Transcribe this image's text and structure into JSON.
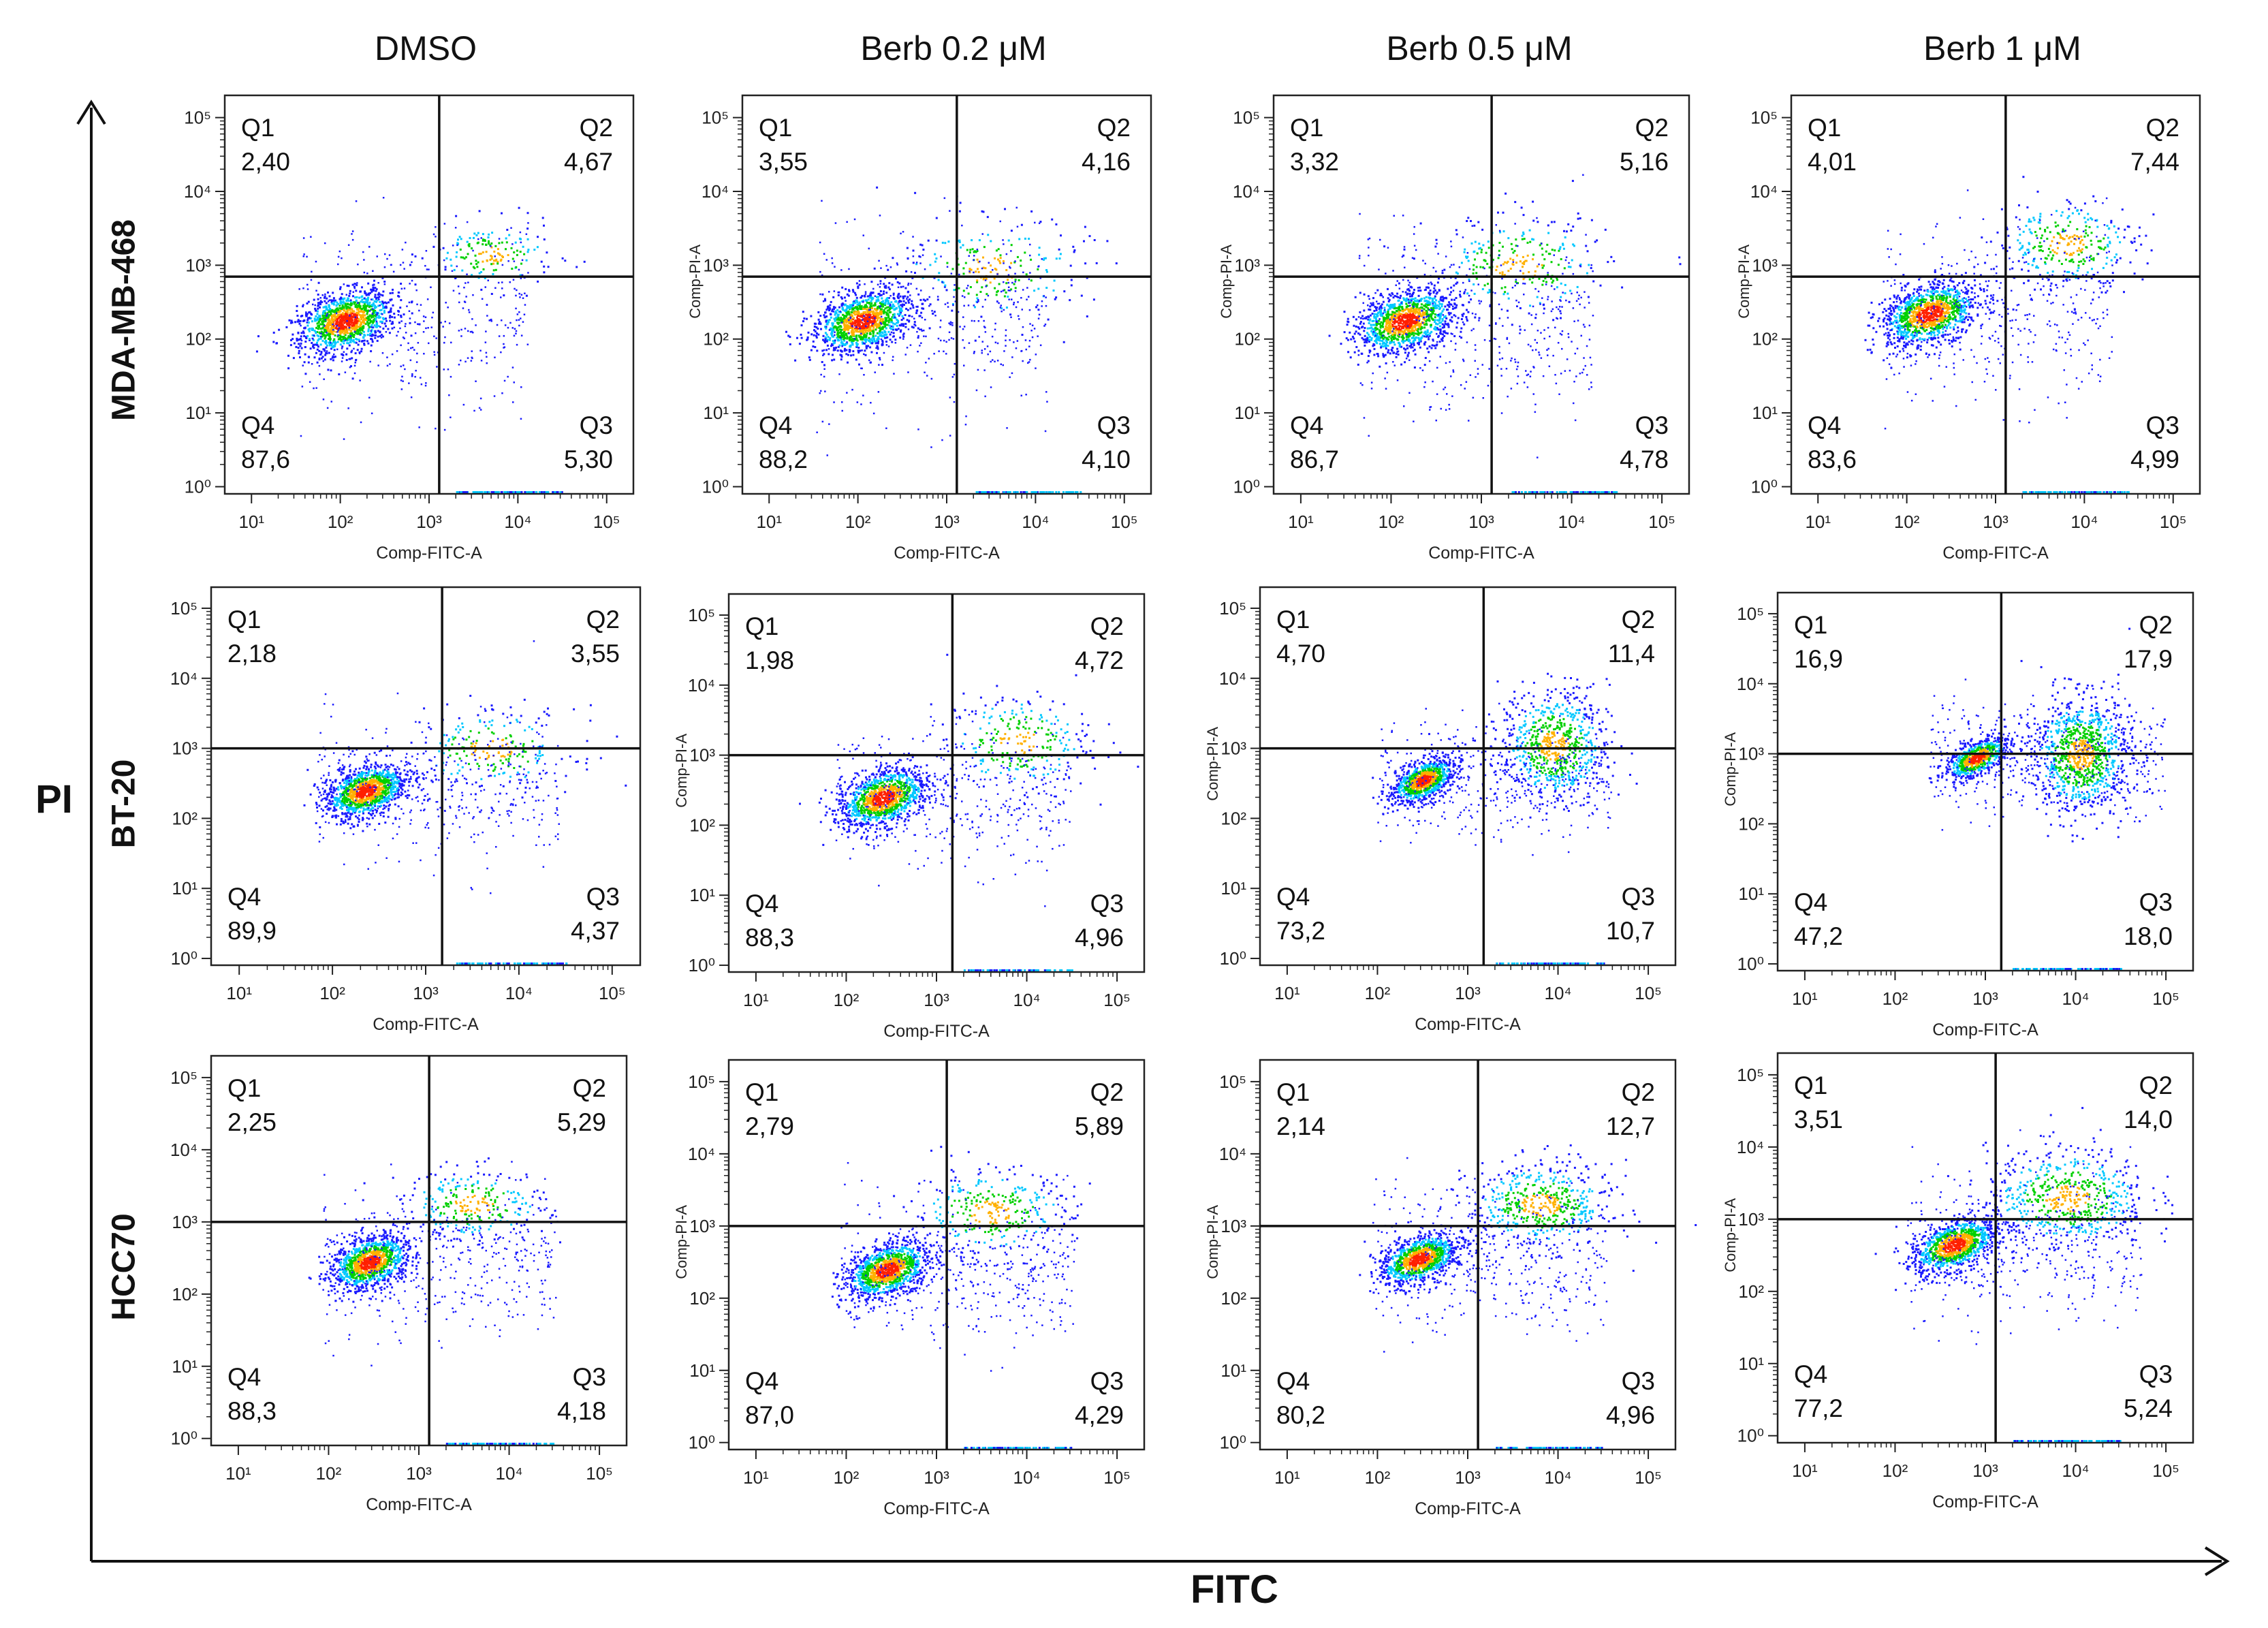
{
  "columns": [
    "DMSO",
    "Berb 0.2 μM",
    "Berb 0.5 μM",
    "Berb 1 μM"
  ],
  "rows": [
    "MDA-MB-468",
    "BT-20",
    "HCC70"
  ],
  "y_axis_title": "PI",
  "x_axis_title": "FITC",
  "colors": {
    "frame": "#222222",
    "gate": "#111111",
    "low": "#1a1aff",
    "mid": "#00c8ff",
    "high": "#00d000",
    "peak": "#ffb000",
    "max": "#ff2000"
  },
  "chart_data": [
    {
      "type": "scatter",
      "row": "MDA-MB-468",
      "column": "DMSO",
      "xlabel": "Comp-FITC-A",
      "ylabel": "",
      "gate_x": 1300,
      "gate_y": 700,
      "xlim": [
        5,
        200000
      ],
      "ylim": [
        0.8,
        200000
      ],
      "x_ticks": [
        "10¹",
        "10²",
        "10³",
        "10⁴",
        "10⁵"
      ],
      "y_ticks": [
        "10⁰",
        "10¹",
        "10²",
        "10³",
        "10⁴",
        "10⁵"
      ],
      "quadrants": [
        {
          "name": "Q1",
          "value": "2,40"
        },
        {
          "name": "Q2",
          "value": "4,67"
        },
        {
          "name": "Q3",
          "value": "5,30"
        },
        {
          "name": "Q4",
          "value": "87,6"
        }
      ]
    },
    {
      "type": "scatter",
      "row": "MDA-MB-468",
      "column": "Berb 0.2 μM",
      "xlabel": "Comp-FITC-A",
      "ylabel": "Comp-PI-A",
      "gate_x": 1300,
      "gate_y": 700,
      "xlim": [
        5,
        200000
      ],
      "ylim": [
        0.8,
        200000
      ],
      "x_ticks": [
        "10¹",
        "10²",
        "10³",
        "10⁴",
        "10⁵"
      ],
      "y_ticks": [
        "10⁰",
        "10¹",
        "10²",
        "10³",
        "10⁴",
        "10⁵"
      ],
      "quadrants": [
        {
          "name": "Q1",
          "value": "3,55"
        },
        {
          "name": "Q2",
          "value": "4,16"
        },
        {
          "name": "Q3",
          "value": "4,10"
        },
        {
          "name": "Q4",
          "value": "88,2"
        }
      ]
    },
    {
      "type": "scatter",
      "row": "MDA-MB-468",
      "column": "Berb 0.5 μM",
      "xlabel": "Comp-FITC-A",
      "ylabel": "Comp-PI-A",
      "gate_x": 1300,
      "gate_y": 700,
      "xlim": [
        5,
        200000
      ],
      "ylim": [
        0.8,
        200000
      ],
      "x_ticks": [
        "10¹",
        "10²",
        "10³",
        "10⁴",
        "10⁵"
      ],
      "y_ticks": [
        "10⁰",
        "10¹",
        "10²",
        "10³",
        "10⁴",
        "10⁵"
      ],
      "quadrants": [
        {
          "name": "Q1",
          "value": "3,32"
        },
        {
          "name": "Q2",
          "value": "5,16"
        },
        {
          "name": "Q3",
          "value": "4,78"
        },
        {
          "name": "Q4",
          "value": "86,7"
        }
      ]
    },
    {
      "type": "scatter",
      "row": "MDA-MB-468",
      "column": "Berb 1 μM",
      "xlabel": "Comp-FITC-A",
      "ylabel": "Comp-PI-A",
      "gate_x": 1300,
      "gate_y": 700,
      "xlim": [
        5,
        200000
      ],
      "ylim": [
        0.8,
        200000
      ],
      "x_ticks": [
        "10¹",
        "10²",
        "10³",
        "10⁴",
        "10⁵"
      ],
      "y_ticks": [
        "10⁰",
        "10¹",
        "10²",
        "10³",
        "10⁴",
        "10⁵"
      ],
      "quadrants": [
        {
          "name": "Q1",
          "value": "4,01"
        },
        {
          "name": "Q2",
          "value": "7,44"
        },
        {
          "name": "Q3",
          "value": "4,99"
        },
        {
          "name": "Q4",
          "value": "83,6"
        }
      ]
    },
    {
      "type": "scatter",
      "row": "BT-20",
      "column": "DMSO",
      "xlabel": "Comp-FITC-A",
      "ylabel": "",
      "gate_x": 1500,
      "gate_y": 1000,
      "xlim": [
        5,
        200000
      ],
      "ylim": [
        0.8,
        200000
      ],
      "x_ticks": [
        "10¹",
        "10²",
        "10³",
        "10⁴",
        "10⁵"
      ],
      "y_ticks": [
        "10⁰",
        "10¹",
        "10²",
        "10³",
        "10⁴",
        "10⁵"
      ],
      "quadrants": [
        {
          "name": "Q1",
          "value": "2,18"
        },
        {
          "name": "Q2",
          "value": "3,55"
        },
        {
          "name": "Q3",
          "value": "4,37"
        },
        {
          "name": "Q4",
          "value": "89,9"
        }
      ]
    },
    {
      "type": "scatter",
      "row": "BT-20",
      "column": "Berb 0.2 μM",
      "xlabel": "Comp-FITC-A",
      "ylabel": "Comp-PI-A",
      "gate_x": 1500,
      "gate_y": 1000,
      "xlim": [
        5,
        200000
      ],
      "ylim": [
        0.8,
        200000
      ],
      "x_ticks": [
        "10¹",
        "10²",
        "10³",
        "10⁴",
        "10⁵"
      ],
      "y_ticks": [
        "10⁰",
        "10¹",
        "10²",
        "10³",
        "10⁴",
        "10⁵"
      ],
      "quadrants": [
        {
          "name": "Q1",
          "value": "1,98"
        },
        {
          "name": "Q2",
          "value": "4,72"
        },
        {
          "name": "Q3",
          "value": "4,96"
        },
        {
          "name": "Q4",
          "value": "88,3"
        }
      ]
    },
    {
      "type": "scatter",
      "row": "BT-20",
      "column": "Berb 0.5 μM",
      "xlabel": "Comp-FITC-A",
      "ylabel": "Comp-PI-A",
      "gate_x": 1500,
      "gate_y": 1000,
      "xlim": [
        5,
        200000
      ],
      "ylim": [
        0.8,
        200000
      ],
      "x_ticks": [
        "10¹",
        "10²",
        "10³",
        "10⁴",
        "10⁵"
      ],
      "y_ticks": [
        "10⁰",
        "10¹",
        "10²",
        "10³",
        "10⁴",
        "10⁵"
      ],
      "quadrants": [
        {
          "name": "Q1",
          "value": "4,70"
        },
        {
          "name": "Q2",
          "value": "11,4"
        },
        {
          "name": "Q3",
          "value": "10,7"
        },
        {
          "name": "Q4",
          "value": "73,2"
        }
      ]
    },
    {
      "type": "scatter",
      "row": "BT-20",
      "column": "Berb 1 μM",
      "xlabel": "Comp-FITC-A",
      "ylabel": "Comp-PI-A",
      "gate_x": 1500,
      "gate_y": 1000,
      "xlim": [
        5,
        200000
      ],
      "ylim": [
        0.8,
        200000
      ],
      "x_ticks": [
        "10¹",
        "10²",
        "10³",
        "10⁴",
        "10⁵"
      ],
      "y_ticks": [
        "10⁰",
        "10¹",
        "10²",
        "10³",
        "10⁴",
        "10⁵"
      ],
      "quadrants": [
        {
          "name": "Q1",
          "value": "16,9"
        },
        {
          "name": "Q2",
          "value": "17,9"
        },
        {
          "name": "Q3",
          "value": "18,0"
        },
        {
          "name": "Q4",
          "value": "47,2"
        }
      ]
    },
    {
      "type": "scatter",
      "row": "HCC70",
      "column": "DMSO",
      "xlabel": "Comp-FITC-A",
      "ylabel": "",
      "gate_x": 1300,
      "gate_y": 1000,
      "xlim": [
        5,
        200000
      ],
      "ylim": [
        0.8,
        200000
      ],
      "x_ticks": [
        "10¹",
        "10²",
        "10³",
        "10⁴",
        "10⁵"
      ],
      "y_ticks": [
        "10⁰",
        "10¹",
        "10²",
        "10³",
        "10⁴",
        "10⁵"
      ],
      "quadrants": [
        {
          "name": "Q1",
          "value": "2,25"
        },
        {
          "name": "Q2",
          "value": "5,29"
        },
        {
          "name": "Q3",
          "value": "4,18"
        },
        {
          "name": "Q4",
          "value": "88,3"
        }
      ]
    },
    {
      "type": "scatter",
      "row": "HCC70",
      "column": "Berb 0.2 μM",
      "xlabel": "Comp-FITC-A",
      "ylabel": "Comp-PI-A",
      "gate_x": 1300,
      "gate_y": 1000,
      "xlim": [
        5,
        200000
      ],
      "ylim": [
        0.8,
        200000
      ],
      "x_ticks": [
        "10¹",
        "10²",
        "10³",
        "10⁴",
        "10⁵"
      ],
      "y_ticks": [
        "10⁰",
        "10¹",
        "10²",
        "10³",
        "10⁴",
        "10⁵"
      ],
      "quadrants": [
        {
          "name": "Q1",
          "value": "2,79"
        },
        {
          "name": "Q2",
          "value": "5,89"
        },
        {
          "name": "Q3",
          "value": "4,29"
        },
        {
          "name": "Q4",
          "value": "87,0"
        }
      ]
    },
    {
      "type": "scatter",
      "row": "HCC70",
      "column": "Berb 0.5 μM",
      "xlabel": "Comp-FITC-A",
      "ylabel": "Comp-PI-A",
      "gate_x": 1300,
      "gate_y": 1000,
      "xlim": [
        5,
        200000
      ],
      "ylim": [
        0.8,
        200000
      ],
      "x_ticks": [
        "10¹",
        "10²",
        "10³",
        "10⁴",
        "10⁵"
      ],
      "y_ticks": [
        "10⁰",
        "10¹",
        "10²",
        "10³",
        "10⁴",
        "10⁵"
      ],
      "quadrants": [
        {
          "name": "Q1",
          "value": "2,14"
        },
        {
          "name": "Q2",
          "value": "12,7"
        },
        {
          "name": "Q3",
          "value": "4,96"
        },
        {
          "name": "Q4",
          "value": "80,2"
        }
      ]
    },
    {
      "type": "scatter",
      "row": "HCC70",
      "column": "Berb 1 μM",
      "xlabel": "Comp-FITC-A",
      "ylabel": "Comp-PI-A",
      "gate_x": 1300,
      "gate_y": 1000,
      "xlim": [
        5,
        200000
      ],
      "ylim": [
        0.8,
        200000
      ],
      "x_ticks": [
        "10¹",
        "10²",
        "10³",
        "10⁴",
        "10⁵"
      ],
      "y_ticks": [
        "10⁰",
        "10¹",
        "10²",
        "10³",
        "10⁴",
        "10⁵"
      ],
      "quadrants": [
        {
          "name": "Q1",
          "value": "3,51"
        },
        {
          "name": "Q2",
          "value": "14,0"
        },
        {
          "name": "Q3",
          "value": "5,24"
        },
        {
          "name": "Q4",
          "value": "77,2"
        }
      ]
    }
  ]
}
